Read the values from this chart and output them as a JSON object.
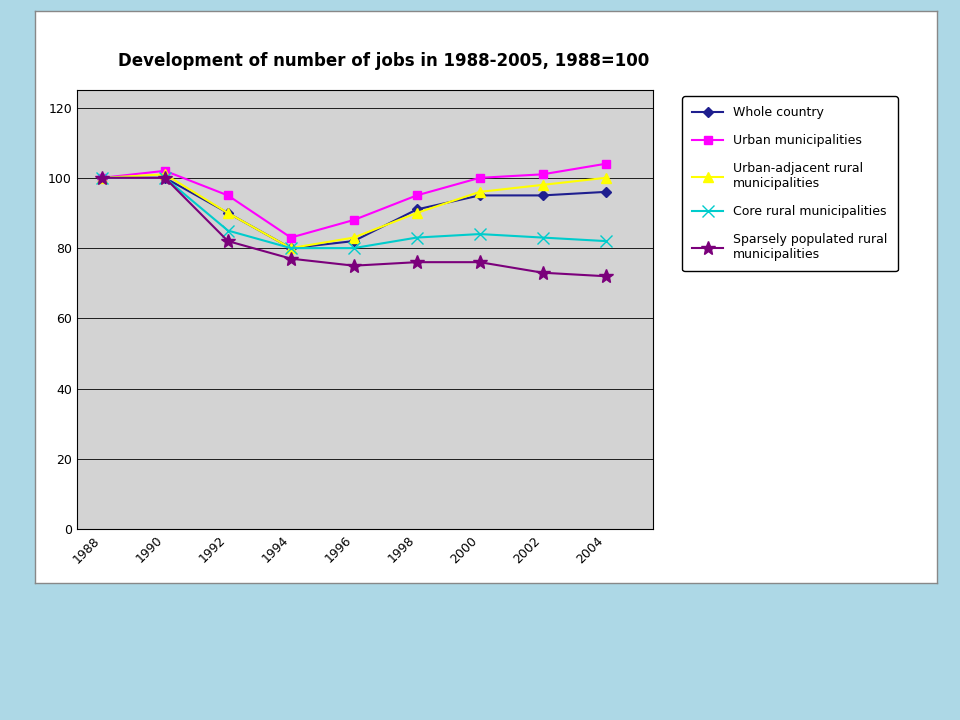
{
  "title": "Development of number of jobs in 1988-2005, 1988=100",
  "years": [
    1988,
    1990,
    1992,
    1994,
    1996,
    1998,
    2000,
    2002,
    2004
  ],
  "series": {
    "whole_country": [
      100,
      100,
      90,
      80,
      82,
      91,
      95,
      95,
      96
    ],
    "urban_municipalities": [
      100,
      102,
      95,
      83,
      88,
      95,
      100,
      101,
      104
    ],
    "urban_adjacent_rural": [
      100,
      101,
      90,
      80,
      83,
      90,
      96,
      98,
      100
    ],
    "core_rural": [
      100,
      100,
      85,
      80,
      80,
      83,
      84,
      83,
      82
    ],
    "sparsely_populated": [
      100,
      100,
      82,
      77,
      75,
      76,
      76,
      73,
      72
    ]
  },
  "colors": {
    "whole_country": "#1F1F8F",
    "urban_municipalities": "#FF00FF",
    "urban_adjacent_rural": "#FFFF00",
    "core_rural": "#00CCCC",
    "sparsely_populated": "#7B007B"
  },
  "markers": {
    "whole_country": "D",
    "urban_municipalities": "s",
    "urban_adjacent_rural": "^",
    "core_rural": "x",
    "sparsely_populated": "*"
  },
  "markersizes": {
    "whole_country": 5,
    "urban_municipalities": 6,
    "urban_adjacent_rural": 7,
    "core_rural": 8,
    "sparsely_populated": 10
  },
  "labels": {
    "whole_country": "Whole country",
    "urban_municipalities": "Urban municipalities",
    "urban_adjacent_rural": "Urban-adjacent rural\nmunicipalities",
    "core_rural": "Core rural municipalities",
    "sparsely_populated": "Sparsely populated rural\nmunicipalities"
  },
  "order": [
    "whole_country",
    "urban_municipalities",
    "urban_adjacent_rural",
    "core_rural",
    "sparsely_populated"
  ],
  "ylim": [
    0,
    125
  ],
  "yticks": [
    0,
    20,
    40,
    60,
    80,
    100,
    120
  ],
  "plot_bg": "#D3D3D3",
  "slide_bg": "#FFFFFF",
  "outer_bg": "#ADD8E6"
}
